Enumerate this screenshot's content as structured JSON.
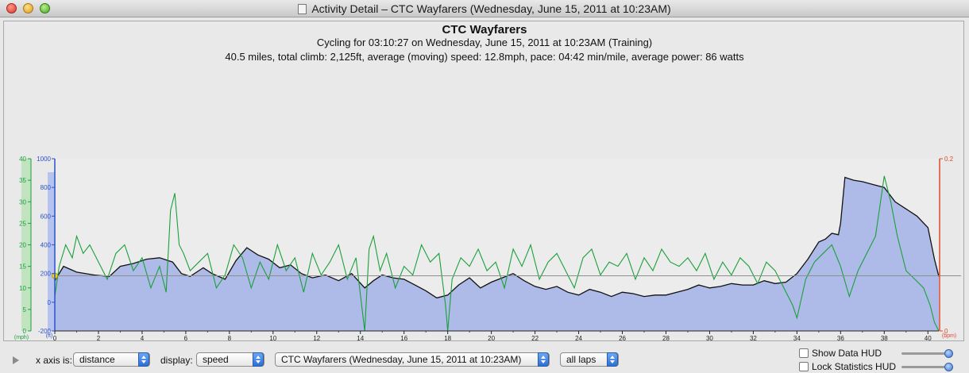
{
  "window": {
    "title": "Activity Detail – CTC Wayfarers  (Wednesday, June 15, 2011 at 10:23AM)"
  },
  "header": {
    "title": "CTC Wayfarers",
    "subtitle": "Cycling for 03:10:27 on Wednesday, June 15, 2011 at 10:23AM (Training)",
    "summary": "40.5 miles, total climb: 2,125ft, average (moving) speed: 12.8mph, pace: 04:42 min/mile, average power: 86 watts"
  },
  "chart_data": {
    "type": "area",
    "x_axis": {
      "ticks": [
        0,
        2,
        4,
        6,
        8,
        10,
        12,
        14,
        16,
        18,
        20,
        22,
        24,
        26,
        28,
        30,
        32,
        34,
        36,
        38,
        40
      ],
      "range": [
        0,
        40.5
      ]
    },
    "speed_axis": {
      "unit": "(mph)",
      "ticks": [
        0,
        5,
        10,
        15,
        20,
        25,
        30,
        35,
        40
      ],
      "range": [
        0,
        40
      ],
      "color": "#1aa03a"
    },
    "altitude_axis": {
      "unit": "(ft)",
      "ticks": [
        -200,
        0,
        200,
        400,
        600,
        800,
        1000
      ],
      "range": [
        -200,
        1000
      ],
      "color": "#2a52c8"
    },
    "hr_axis": {
      "unit": "(bpm)",
      "ticks": [
        0,
        0.2
      ],
      "range": [
        0,
        0.2
      ],
      "color": "#e04b2a"
    },
    "altitude": {
      "x": [
        0,
        0.4,
        1.0,
        1.8,
        2.5,
        3.0,
        3.6,
        4.2,
        4.8,
        5.4,
        5.8,
        6.2,
        6.8,
        7.2,
        7.8,
        8.3,
        8.8,
        9.3,
        9.8,
        10.3,
        10.8,
        11.3,
        11.8,
        12.4,
        13.0,
        13.6,
        14.2,
        14.6,
        15.0,
        15.5,
        16.0,
        16.5,
        17.0,
        17.5,
        18.0,
        18.5,
        19.0,
        19.5,
        20.0,
        20.5,
        21.0,
        21.5,
        22.0,
        22.5,
        23.0,
        23.5,
        24.0,
        24.5,
        25.0,
        25.5,
        26.0,
        26.5,
        27.0,
        27.5,
        28.0,
        28.5,
        29.0,
        29.5,
        30.0,
        30.5,
        31.0,
        31.5,
        32.0,
        32.5,
        33.0,
        33.5,
        34.0,
        34.5,
        35.0,
        35.3,
        35.6,
        35.9,
        36.0,
        36.2,
        36.6,
        37.0,
        37.5,
        38.0,
        38.5,
        39.0,
        39.5,
        40.0,
        40.3,
        40.5
      ],
      "y": [
        150,
        250,
        210,
        190,
        180,
        250,
        270,
        300,
        310,
        280,
        200,
        180,
        240,
        200,
        160,
        290,
        380,
        330,
        300,
        240,
        260,
        200,
        170,
        190,
        150,
        200,
        100,
        150,
        190,
        170,
        160,
        120,
        80,
        30,
        50,
        120,
        170,
        100,
        140,
        170,
        200,
        150,
        110,
        90,
        110,
        70,
        50,
        90,
        70,
        40,
        70,
        60,
        40,
        50,
        50,
        70,
        90,
        120,
        100,
        110,
        130,
        120,
        120,
        150,
        130,
        140,
        200,
        300,
        420,
        440,
        480,
        470,
        550,
        870,
        850,
        840,
        820,
        800,
        700,
        650,
        600,
        520,
        300,
        180
      ]
    },
    "speed": {
      "x": [
        0,
        0.2,
        0.5,
        0.8,
        1.0,
        1.3,
        1.6,
        2.0,
        2.4,
        2.8,
        3.2,
        3.6,
        4.0,
        4.4,
        4.8,
        5.1,
        5.3,
        5.5,
        5.7,
        5.9,
        6.2,
        6.6,
        7.0,
        7.4,
        7.8,
        8.2,
        8.6,
        9.0,
        9.4,
        9.8,
        10.2,
        10.6,
        11.0,
        11.4,
        11.8,
        12.2,
        12.6,
        13.0,
        13.4,
        13.8,
        14.2,
        14.4,
        14.6,
        14.9,
        15.2,
        15.6,
        16.0,
        16.4,
        16.8,
        17.2,
        17.6,
        17.9,
        18.0,
        18.2,
        18.6,
        19.0,
        19.4,
        19.8,
        20.2,
        20.6,
        21.0,
        21.4,
        21.8,
        22.2,
        22.6,
        23.0,
        23.4,
        23.8,
        24.2,
        24.6,
        25.0,
        25.4,
        25.8,
        26.2,
        26.6,
        27.0,
        27.4,
        27.8,
        28.2,
        28.6,
        29.0,
        29.4,
        29.8,
        30.2,
        30.6,
        31.0,
        31.4,
        31.8,
        32.2,
        32.6,
        33.0,
        33.4,
        33.8,
        34.0,
        34.4,
        34.8,
        35.2,
        35.6,
        36.0,
        36.4,
        36.8,
        37.2,
        37.6,
        38.0,
        38.3,
        38.6,
        39.0,
        39.4,
        39.8,
        40.1,
        40.3,
        40.5
      ],
      "y": [
        8,
        15,
        20,
        17,
        22,
        18,
        20,
        16,
        12,
        18,
        20,
        14,
        17,
        10,
        15,
        9,
        28,
        32,
        20,
        18,
        14,
        16,
        18,
        10,
        13,
        20,
        17,
        10,
        16,
        12,
        20,
        14,
        17,
        9,
        18,
        13,
        16,
        20,
        12,
        17,
        0,
        19,
        22,
        14,
        18,
        10,
        15,
        13,
        20,
        16,
        18,
        6,
        0,
        12,
        17,
        15,
        19,
        14,
        16,
        10,
        19,
        15,
        20,
        12,
        16,
        18,
        14,
        10,
        17,
        19,
        13,
        16,
        15,
        18,
        12,
        17,
        14,
        19,
        16,
        15,
        17,
        14,
        18,
        12,
        16,
        13,
        17,
        15,
        11,
        16,
        14,
        10,
        6,
        3,
        12,
        16,
        18,
        20,
        15,
        8,
        14,
        18,
        22,
        36,
        30,
        22,
        14,
        12,
        10,
        6,
        2,
        0
      ]
    }
  },
  "controls": {
    "x_axis_label": "x axis is:",
    "x_axis_value": "distance",
    "display_label": "display:",
    "display_value": "speed",
    "activity_value": "CTC Wayfarers  (Wednesday, June 15, 2011 at 10:23AM)",
    "laps_value": "all laps",
    "show_data_hud": "Show Data HUD",
    "lock_stats_hud": "Lock Statistics HUD",
    "show_data_hud_level": 0.92,
    "lock_stats_hud_level": 0.92
  }
}
